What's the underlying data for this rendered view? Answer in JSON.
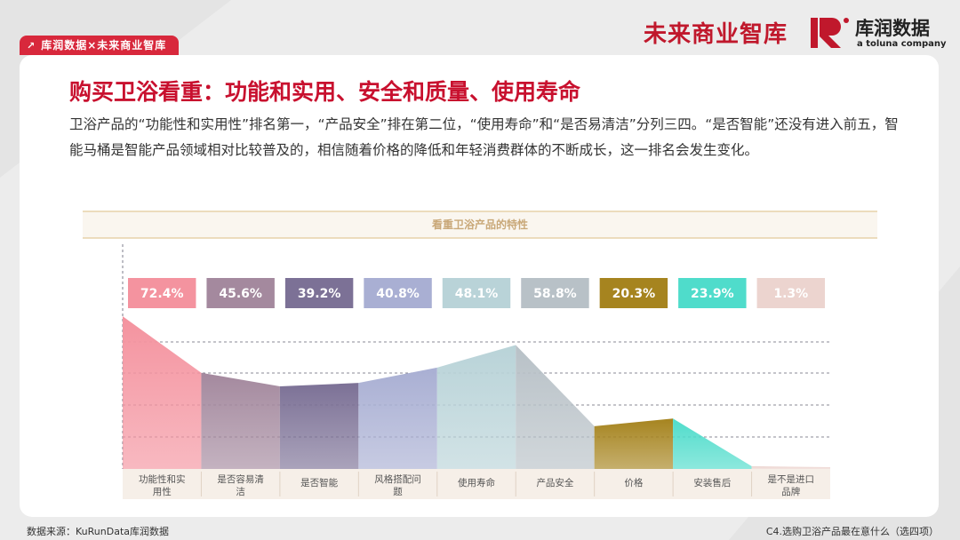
{
  "header": {
    "tag_label": "库润数据×未来商业智库",
    "logo_cn": "未来商业智库",
    "logo_brand": "库润数据",
    "logo_sub": "a toluna company"
  },
  "slide": {
    "title": "购买卫浴看重：功能和实用、安全和质量、使用寿命",
    "description": "卫浴产品的“功能性和实用性”排名第一，“产品安全”排在第二位，“使用寿命”和“是否易清洁”分列三四。“是否智能”还没有进入前五，智能马桶是智能产品领域相对比较普及的，相信随着价格的降低和年轻消费群体的不断成长，这一排名会发生变化。"
  },
  "chart_data": {
    "type": "area",
    "title": "看重卫浴产品的特性",
    "categories": [
      "功能性和实用性",
      "是否容易清洁",
      "是否智能",
      "风格搭配问题",
      "使用寿命",
      "产品安全",
      "价格",
      "安装售后",
      "是不是进口品牌"
    ],
    "values": [
      72.4,
      45.6,
      39.2,
      40.8,
      48.1,
      58.8,
      20.3,
      23.9,
      1.3
    ],
    "labels": [
      "72.4%",
      "45.6%",
      "39.2%",
      "40.8%",
      "48.1%",
      "58.8%",
      "20.3%",
      "23.9%",
      "1.3%"
    ],
    "colors": [
      "#f4939f",
      "#a4899e",
      "#7c7196",
      "#a9afd3",
      "#b9d3d8",
      "#b8c1c7",
      "#a6841f",
      "#4fdccb",
      "#ecd4cf"
    ],
    "grid": true,
    "ylim": [
      0,
      75
    ]
  },
  "footer": {
    "source": "数据来源：KuRunData库润数据",
    "question": "C4.选购卫浴产品最在意什么（选四项）"
  }
}
